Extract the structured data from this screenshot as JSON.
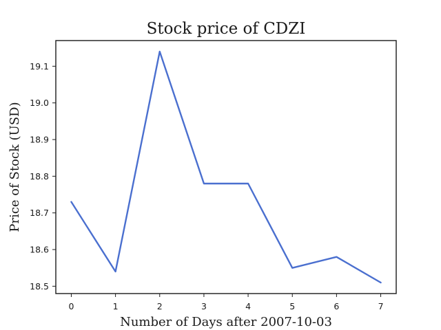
{
  "chart_data": {
    "type": "line",
    "title": "Stock price of CDZI",
    "xlabel": "Number of Days after 2007-10-03",
    "ylabel": "Price of Stock (USD)",
    "x": [
      0,
      1,
      2,
      3,
      4,
      5,
      6,
      7
    ],
    "series": [
      {
        "values": [
          18.73,
          18.54,
          19.14,
          18.78,
          18.78,
          18.55,
          18.58,
          18.51
        ],
        "color": "#4a6fcf"
      }
    ],
    "xticks": [
      "0",
      "1",
      "2",
      "3",
      "4",
      "5",
      "6",
      "7"
    ],
    "yticks": [
      "18.5",
      "18.6",
      "18.7",
      "18.8",
      "18.9",
      "19.0",
      "19.1"
    ],
    "xlim": [
      -0.35,
      7.35
    ],
    "ylim": [
      18.48,
      19.17
    ],
    "grid": false
  }
}
